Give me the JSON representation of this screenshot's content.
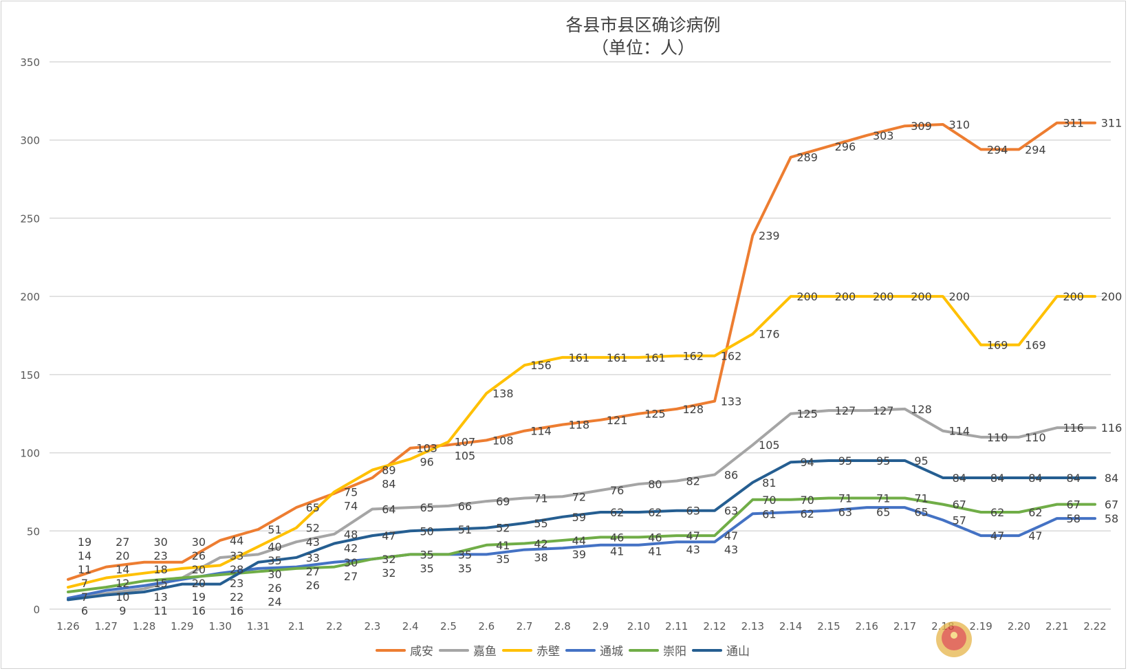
{
  "chart_data": {
    "type": "line",
    "title": "各县市县区确诊病例",
    "subtitle": "（单位：人）",
    "xlabel": "",
    "ylabel": "",
    "ylim": [
      0,
      350
    ],
    "yticks": [
      0,
      50,
      100,
      150,
      200,
      250,
      300,
      350
    ],
    "grid": true,
    "legend": "bottom",
    "categories": [
      "1.26",
      "1.27",
      "1.28",
      "1.29",
      "1.30",
      "1.31",
      "2.1",
      "2.2",
      "2.3",
      "2.4",
      "2.5",
      "2.6",
      "2.7",
      "2.8",
      "2.9",
      "2.10",
      "2.11",
      "2.12",
      "2.13",
      "2.14",
      "2.15",
      "2.16",
      "2.17",
      "2.18",
      "2.19",
      "2.20",
      "2.21",
      "2.22"
    ],
    "series": [
      {
        "name": "咸安",
        "color": "#ED7D31",
        "values": [
          19,
          27,
          30,
          30,
          44,
          51,
          65,
          74,
          84,
          103,
          105,
          108,
          114,
          118,
          121,
          125,
          128,
          133,
          239,
          289,
          296,
          303,
          309,
          310,
          294,
          294,
          311,
          311
        ]
      },
      {
        "name": "嘉鱼",
        "color": "#A5A5A5",
        "values": [
          7,
          10,
          13,
          20,
          33,
          35,
          43,
          48,
          64,
          65,
          66,
          69,
          71,
          72,
          76,
          80,
          82,
          86,
          105,
          125,
          127,
          127,
          128,
          114,
          110,
          110,
          116,
          116
        ]
      },
      {
        "name": "赤壁",
        "color": "#FFC000",
        "values": [
          14,
          20,
          23,
          26,
          28,
          40,
          52,
          75,
          89,
          96,
          107,
          138,
          156,
          161,
          161,
          161,
          162,
          162,
          176,
          200,
          200,
          200,
          200,
          200,
          169,
          169,
          200,
          200
        ]
      },
      {
        "name": "通城",
        "color": "#4472C4",
        "values": [
          7,
          12,
          15,
          19,
          23,
          26,
          27,
          30,
          32,
          35,
          35,
          35,
          38,
          39,
          41,
          41,
          43,
          43,
          61,
          62,
          63,
          65,
          65,
          57,
          47,
          47,
          58,
          58
        ]
      },
      {
        "name": "崇阳",
        "color": "#70AD47",
        "values": [
          11,
          14,
          18,
          20,
          22,
          24,
          26,
          27,
          32,
          35,
          35,
          41,
          42,
          44,
          46,
          46,
          47,
          47,
          70,
          70,
          71,
          71,
          71,
          67,
          62,
          62,
          67,
          67
        ]
      },
      {
        "name": "通山",
        "color": "#255E91",
        "values": [
          6,
          9,
          11,
          16,
          16,
          30,
          33,
          42,
          47,
          50,
          51,
          52,
          55,
          59,
          62,
          62,
          63,
          63,
          81,
          94,
          95,
          95,
          95,
          84,
          84,
          84,
          84,
          84
        ]
      }
    ]
  }
}
